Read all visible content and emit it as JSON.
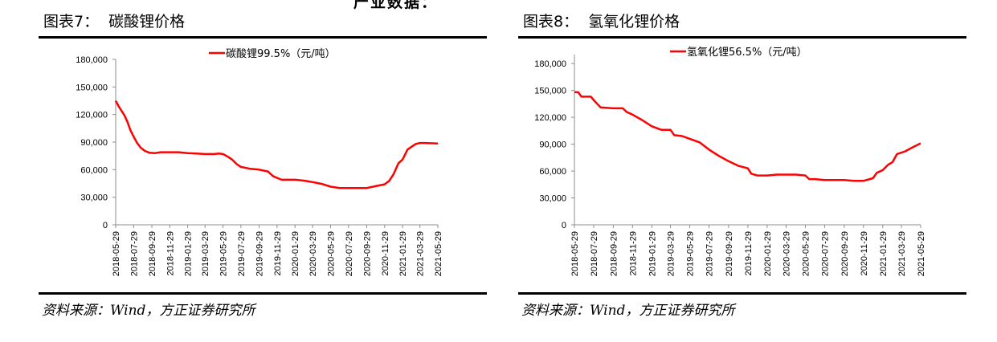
{
  "top_fragment": "产业数据：",
  "charts": [
    {
      "figure_title": "图表7：  碳酸锂价格",
      "source": "资料来源：Wind，方正证券研究所",
      "chart_data": {
        "type": "line",
        "series": [
          {
            "name": "碳酸锂99.5%（元/吨）",
            "color": "#ff0000",
            "points": [
              [
                "2018-05-29",
                135000
              ],
              [
                "2018-06-08",
                129000
              ],
              [
                "2018-06-18",
                124000
              ],
              [
                "2018-06-28",
                119000
              ],
              [
                "2018-07-08",
                112000
              ],
              [
                "2018-07-18",
                103000
              ],
              [
                "2018-07-29",
                96000
              ],
              [
                "2018-08-10",
                89000
              ],
              [
                "2018-08-22",
                84000
              ],
              [
                "2018-09-05",
                80500
              ],
              [
                "2018-09-20",
                78500
              ],
              [
                "2018-10-10",
                78000
              ],
              [
                "2018-10-29",
                79000
              ],
              [
                "2018-11-29",
                79000
              ],
              [
                "2018-12-29",
                79000
              ],
              [
                "2019-01-29",
                78000
              ],
              [
                "2019-02-28",
                77500
              ],
              [
                "2019-03-29",
                77000
              ],
              [
                "2019-04-29",
                77000
              ],
              [
                "2019-05-15",
                77500
              ],
              [
                "2019-05-29",
                77000
              ],
              [
                "2019-06-15",
                74000
              ],
              [
                "2019-06-29",
                71000
              ],
              [
                "2019-07-15",
                66000
              ],
              [
                "2019-07-29",
                63000
              ],
              [
                "2019-08-29",
                61000
              ],
              [
                "2019-09-29",
                60000
              ],
              [
                "2019-10-29",
                58000
              ],
              [
                "2019-11-15",
                53000
              ],
              [
                "2019-11-29",
                51000
              ],
              [
                "2019-12-15",
                49000
              ],
              [
                "2020-01-29",
                49000
              ],
              [
                "2020-02-15",
                48500
              ],
              [
                "2020-03-01",
                48000
              ],
              [
                "2020-03-29",
                46500
              ],
              [
                "2020-04-29",
                44500
              ],
              [
                "2020-05-29",
                41500
              ],
              [
                "2020-06-29",
                40000
              ],
              [
                "2020-07-29",
                40000
              ],
              [
                "2020-08-29",
                40000
              ],
              [
                "2020-09-29",
                40000
              ],
              [
                "2020-10-29",
                42000
              ],
              [
                "2020-11-29",
                44000
              ],
              [
                "2020-12-15",
                48000
              ],
              [
                "2020-12-29",
                55000
              ],
              [
                "2021-01-15",
                67000
              ],
              [
                "2021-01-29",
                71000
              ],
              [
                "2021-02-15",
                82000
              ],
              [
                "2021-03-01",
                85000
              ],
              [
                "2021-03-15",
                88000
              ],
              [
                "2021-03-29",
                89000
              ],
              [
                "2021-04-15",
                89000
              ],
              [
                "2021-05-29",
                88500
              ]
            ]
          }
        ],
        "x_ticks": [
          "2018-05-29",
          "2018-07-29",
          "2018-09-29",
          "2018-11-29",
          "2019-01-29",
          "2019-03-29",
          "2019-05-29",
          "2019-07-29",
          "2019-09-29",
          "2019-11-29",
          "2020-01-29",
          "2020-03-29",
          "2020-05-29",
          "2020-07-29",
          "2020-09-29",
          "2020-11-29",
          "2021-01-29",
          "2021-03-29",
          "2021-05-29"
        ],
        "y_ticks": [
          "0",
          "30,000",
          "60,000",
          "90,000",
          "120,000",
          "150,000",
          "180,000"
        ],
        "ylim": [
          0,
          180000
        ],
        "xlim": [
          "2018-05-29",
          "2021-05-29"
        ],
        "grid": false,
        "legend_position": "top-center"
      }
    },
    {
      "figure_title": "图表8：  氢氧化锂价格",
      "source": "资料来源：Wind，方正证券研究所",
      "chart_data": {
        "type": "line",
        "series": [
          {
            "name": "氢氧化锂56.5%（元/吨）",
            "color": "#ff0000",
            "points": [
              [
                "2018-05-29",
                148000
              ],
              [
                "2018-06-10",
                148000
              ],
              [
                "2018-06-20",
                143000
              ],
              [
                "2018-07-20",
                143000
              ],
              [
                "2018-08-01",
                138000
              ],
              [
                "2018-08-20",
                131000
              ],
              [
                "2018-09-29",
                130000
              ],
              [
                "2018-10-29",
                130000
              ],
              [
                "2018-11-10",
                126000
              ],
              [
                "2018-11-29",
                123000
              ],
              [
                "2018-12-29",
                117000
              ],
              [
                "2019-01-29",
                110000
              ],
              [
                "2019-02-28",
                106000
              ],
              [
                "2019-03-29",
                106000
              ],
              [
                "2019-04-10",
                100000
              ],
              [
                "2019-05-05",
                99000
              ],
              [
                "2019-05-29",
                96000
              ],
              [
                "2019-06-29",
                92000
              ],
              [
                "2019-07-29",
                84000
              ],
              [
                "2019-08-29",
                77000
              ],
              [
                "2019-09-29",
                71000
              ],
              [
                "2019-10-29",
                66000
              ],
              [
                "2019-11-29",
                63000
              ],
              [
                "2019-12-10",
                57000
              ],
              [
                "2019-12-29",
                55000
              ],
              [
                "2020-01-29",
                55000
              ],
              [
                "2020-02-28",
                56000
              ],
              [
                "2020-03-29",
                56000
              ],
              [
                "2020-04-29",
                56000
              ],
              [
                "2020-05-29",
                55000
              ],
              [
                "2020-06-10",
                51000
              ],
              [
                "2020-06-29",
                51000
              ],
              [
                "2020-07-29",
                50000
              ],
              [
                "2020-08-29",
                50000
              ],
              [
                "2020-09-29",
                50000
              ],
              [
                "2020-10-29",
                49000
              ],
              [
                "2020-11-29",
                49000
              ],
              [
                "2020-12-29",
                52000
              ],
              [
                "2021-01-10",
                58000
              ],
              [
                "2021-01-29",
                61000
              ],
              [
                "2021-02-15",
                67000
              ],
              [
                "2021-03-01",
                70000
              ],
              [
                "2021-03-15",
                79000
              ],
              [
                "2021-04-10",
                82000
              ],
              [
                "2021-05-01",
                86000
              ],
              [
                "2021-05-29",
                91000
              ]
            ]
          }
        ],
        "x_ticks": [
          "2018-05-29",
          "2018-07-29",
          "2018-09-29",
          "2018-11-29",
          "2019-01-29",
          "2019-03-29",
          "2019-05-29",
          "2019-07-29",
          "2019-09-29",
          "2019-11-29",
          "2020-01-29",
          "2020-03-29",
          "2020-05-29",
          "2020-07-29",
          "2020-09-29",
          "2020-11-29",
          "2021-01-29",
          "2021-03-29",
          "2021-05-29"
        ],
        "y_ticks": [
          "0",
          "30,000",
          "60,000",
          "90,000",
          "120,000",
          "150,000",
          "180,000"
        ],
        "ylim": [
          0,
          190000
        ],
        "xlim": [
          "2018-05-29",
          "2021-05-29"
        ],
        "grid": false,
        "legend_position": "top-center"
      }
    }
  ]
}
